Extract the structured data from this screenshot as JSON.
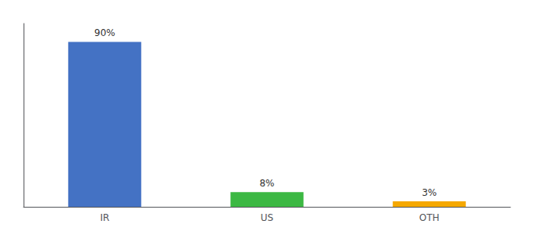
{
  "chart_data": {
    "type": "bar",
    "categories": [
      "IR",
      "US",
      "OTH"
    ],
    "values": [
      90,
      8,
      3
    ],
    "value_labels": [
      "90%",
      "8%",
      "3%"
    ],
    "colors": [
      "#4472C4",
      "#3CB843",
      "#F5A800"
    ],
    "ylim": [
      0,
      100
    ],
    "data_labels": true,
    "tick_labels": "x",
    "grid": false
  }
}
